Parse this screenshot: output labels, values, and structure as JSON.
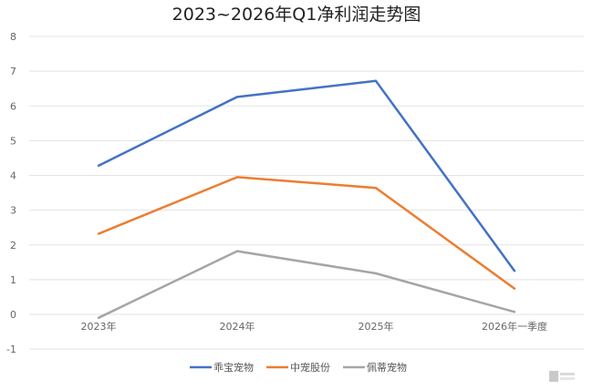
{
  "chart_data": {
    "type": "line",
    "title": "2023~2026年Q1净利润走势图",
    "categories": [
      "2023年",
      "2024年",
      "2025年",
      "2026年一季度"
    ],
    "series": [
      {
        "name": "乖宝宠物",
        "color": "#4472C4",
        "values": [
          4.28,
          6.26,
          6.72,
          1.25
        ]
      },
      {
        "name": "中宠股份",
        "color": "#ED7D31",
        "values": [
          2.32,
          3.95,
          3.64,
          0.74
        ]
      },
      {
        "name": "佩蒂宠物",
        "color": "#A5A5A5",
        "values": [
          -0.1,
          1.82,
          1.18,
          0.07
        ]
      }
    ],
    "ylim": [
      -1,
      8
    ],
    "yticks": [
      -1,
      0,
      1,
      2,
      3,
      4,
      5,
      6,
      7,
      8
    ],
    "grid": true,
    "legend": "bottom",
    "xlabel": "",
    "ylabel": ""
  }
}
